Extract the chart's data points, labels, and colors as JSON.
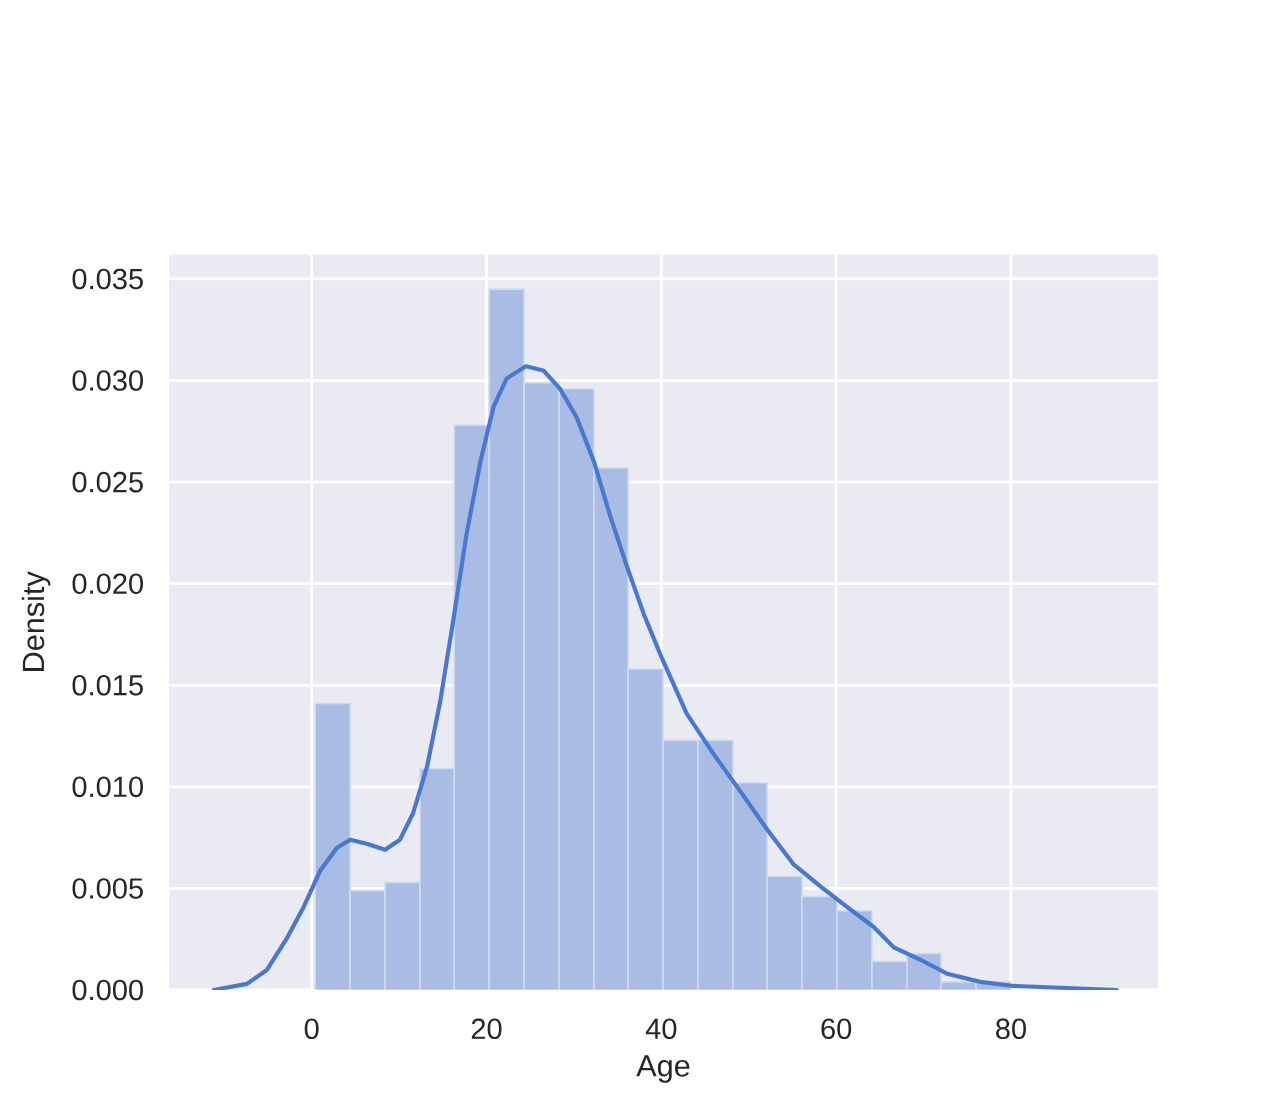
{
  "chart_data": {
    "type": "histogram",
    "xlabel": "Age",
    "ylabel": "Density",
    "xlim": [
      -16.3,
      96.8
    ],
    "ylim": [
      0,
      0.0362
    ],
    "xticks": [
      0,
      20,
      40,
      60,
      80
    ],
    "yticks": [
      {
        "value": 0,
        "label": "0.000"
      },
      {
        "value": 0.005,
        "label": "0.005"
      },
      {
        "value": 0.01,
        "label": "0.010"
      },
      {
        "value": 0.015,
        "label": "0.015"
      },
      {
        "value": 0.02,
        "label": "0.020"
      },
      {
        "value": 0.025,
        "label": "0.025"
      },
      {
        "value": 0.03,
        "label": "0.030"
      },
      {
        "value": 0.035,
        "label": "0.035"
      }
    ],
    "grid": true,
    "series": [
      {
        "color": "#a9bce4",
        "bins": [
          0.4,
          4.4,
          8.4,
          12.4,
          16.3,
          20.3,
          24.3,
          28.3,
          32.3,
          36.2,
          40.2,
          44.2,
          48.2,
          52.1,
          56.1,
          60.1,
          64.1,
          68.1,
          72.0,
          76.0,
          80.0
        ],
        "values": [
          0.0141,
          0.0049,
          0.0053,
          0.0109,
          0.0278,
          0.0345,
          0.0299,
          0.0296,
          0.0257,
          0.0158,
          0.0123,
          0.0123,
          0.0102,
          0.0056,
          0.0046,
          0.0039,
          0.0014,
          0.0018,
          0.0004,
          0.0004
        ]
      },
      {
        "type": "line",
        "color": "#4878d0",
        "x": [
          -11.2,
          -7.4,
          -5.1,
          -2.9,
          -0.9,
          1.0,
          2.9,
          4.4,
          6.3,
          8.4,
          10.1,
          11.6,
          13.2,
          14.7,
          16.2,
          17.7,
          19.3,
          20.8,
          22.3,
          24.5,
          26.5,
          28.4,
          30.3,
          32.3,
          34.1,
          36.1,
          38.0,
          39.9,
          42.9,
          46.0,
          49.0,
          52.1,
          55.1,
          58.2,
          61.2,
          64.3,
          66.6,
          69.6,
          72.7,
          76.5,
          80.3,
          86.4,
          92.1
        ],
        "values": [
          0,
          0.0003,
          0.001,
          0.0025,
          0.0041,
          0.0059,
          0.007,
          0.0074,
          0.0072,
          0.0069,
          0.0074,
          0.0087,
          0.011,
          0.0142,
          0.0182,
          0.0224,
          0.026,
          0.0287,
          0.0301,
          0.0307,
          0.0305,
          0.0296,
          0.0282,
          0.026,
          0.0234,
          0.0208,
          0.0185,
          0.0165,
          0.0136,
          0.0116,
          0.0098,
          0.0079,
          0.0062,
          0.0051,
          0.0041,
          0.0031,
          0.0021,
          0.0015,
          0.0008,
          0.0004,
          0.0002,
          0.0001,
          0
        ]
      }
    ]
  }
}
